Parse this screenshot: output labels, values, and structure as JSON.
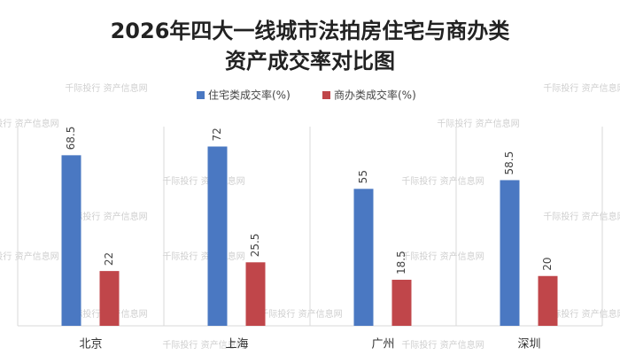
{
  "chart_data": {
    "type": "bar",
    "title": [
      "2026年四大一线城市法拍房住宅与商办类",
      "资产成交率对比图"
    ],
    "categories": [
      "北京",
      "上海",
      "广州",
      "深圳"
    ],
    "series": [
      {
        "name": "住宅类成交率(%)",
        "color": "#4a78c2",
        "values": [
          68.5,
          72,
          55,
          58.5
        ]
      },
      {
        "name": "商办类成交率(%)",
        "color": "#c0464a",
        "values": [
          22,
          25.5,
          18.5,
          20
        ]
      }
    ],
    "ylim": [
      0,
      80
    ],
    "legend": "top",
    "watermark": "千际投行 资产信息网"
  }
}
